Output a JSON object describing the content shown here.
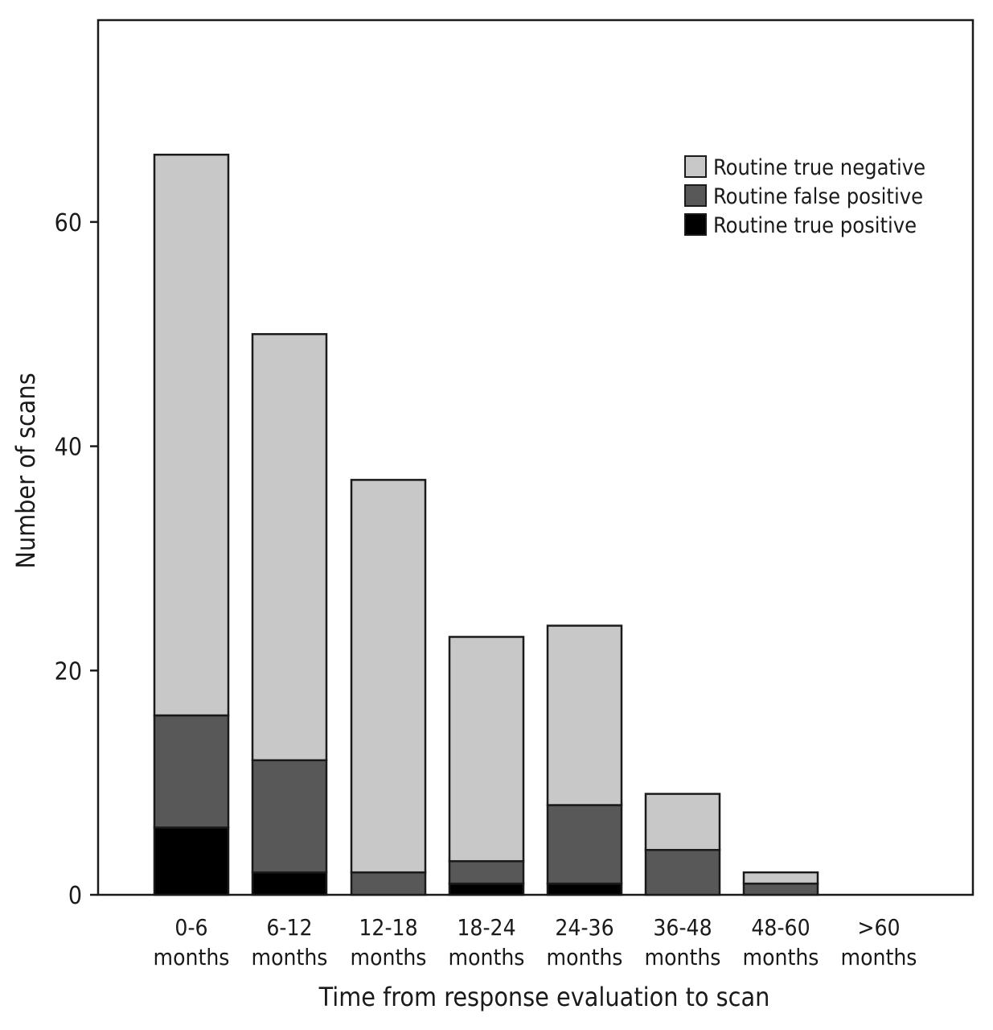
{
  "chart_data": {
    "type": "bar",
    "stacked": true,
    "title": "",
    "xlabel": "Time from response evaluation to scan",
    "ylabel": "Number of scans",
    "ylim": [
      0,
      78
    ],
    "yticks": [
      0,
      20,
      40,
      60
    ],
    "grid": false,
    "legend_position": "top-right",
    "categories": [
      [
        "0-6",
        "months"
      ],
      [
        "6-12",
        "months"
      ],
      [
        "12-18",
        "months"
      ],
      [
        "18-24",
        "months"
      ],
      [
        "24-36",
        "months"
      ],
      [
        "36-48",
        "months"
      ],
      [
        "48-60",
        "months"
      ],
      [
        ">60",
        "months"
      ]
    ],
    "series": [
      {
        "name": "Routine true positive",
        "color": "#000000",
        "values": [
          6,
          2,
          0,
          1,
          1,
          0,
          0,
          0
        ]
      },
      {
        "name": "Routine false positive",
        "color": "#585858",
        "values": [
          10,
          10,
          2,
          2,
          7,
          4,
          1,
          0
        ]
      },
      {
        "name": "Routine true negative",
        "color": "#c8c8c8",
        "values": [
          50,
          38,
          35,
          20,
          16,
          5,
          1,
          0
        ]
      }
    ],
    "legend_order": [
      "Routine true negative",
      "Routine false positive",
      "Routine true positive"
    ]
  }
}
